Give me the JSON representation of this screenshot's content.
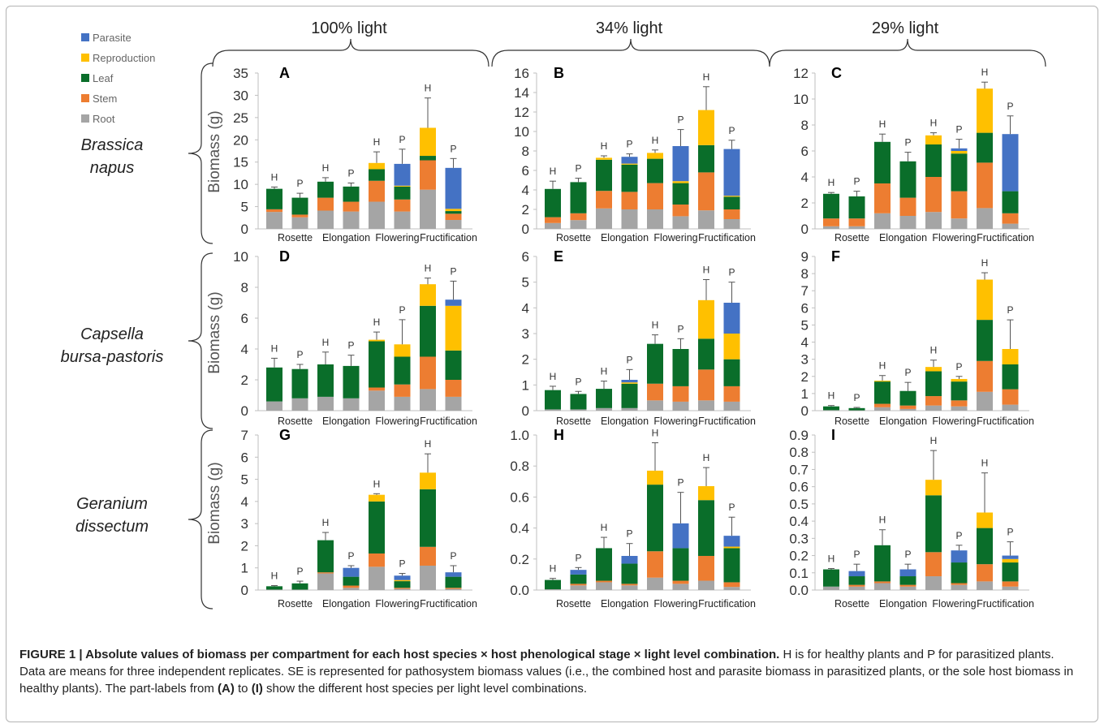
{
  "figure": {
    "column_titles": [
      "100% light",
      "34% light",
      "29% light"
    ],
    "row_labels": [
      [
        "Brassica",
        "napus"
      ],
      [
        "Capsella",
        "bursa-pastoris"
      ],
      [
        "Geranium",
        "dissectum"
      ]
    ],
    "legend": [
      {
        "name": "Parasite",
        "color": "#4472c4"
      },
      {
        "name": "Reproduction",
        "color": "#ffc000"
      },
      {
        "name": "Leaf",
        "color": "#0a6e2a"
      },
      {
        "name": "Stem",
        "color": "#ed7d31"
      },
      {
        "name": "Root",
        "color": "#a5a5a5"
      }
    ],
    "ylabel": "Biomass (g)",
    "categories": [
      "Rosette",
      "Elongation",
      "Flowering",
      "Fructification"
    ],
    "bar_labels": [
      "H",
      "P",
      "H",
      "P",
      "H",
      "P",
      "H",
      "P"
    ]
  },
  "chart_data": [
    {
      "type": "bar",
      "panel": "A",
      "ylim": [
        0,
        35
      ],
      "ticks": [
        "0",
        "5",
        "10",
        "15",
        "20",
        "25",
        "30",
        "35"
      ],
      "bars": [
        {
          "label": "H",
          "root": 3.8,
          "stem": 0.6,
          "leaf": 4.6,
          "repro": 0,
          "parasite": 0,
          "err": 0.4
        },
        {
          "label": "P",
          "root": 2.6,
          "stem": 0.6,
          "leaf": 3.8,
          "repro": 0,
          "parasite": 0,
          "err": 1.0
        },
        {
          "label": "H",
          "root": 4.1,
          "stem": 2.9,
          "leaf": 3.6,
          "repro": 0,
          "parasite": 0,
          "err": 0.9
        },
        {
          "label": "P",
          "root": 3.9,
          "stem": 2.2,
          "leaf": 3.4,
          "repro": 0,
          "parasite": 0,
          "err": 0.8
        },
        {
          "label": "H",
          "root": 6.1,
          "stem": 4.7,
          "leaf": 2.6,
          "repro": 1.4,
          "parasite": 0,
          "err": 2.5
        },
        {
          "label": "P",
          "root": 3.9,
          "stem": 2.7,
          "leaf": 2.9,
          "repro": 0.2,
          "parasite": 4.9,
          "err": 3.3
        },
        {
          "label": "H",
          "root": 8.8,
          "stem": 6.6,
          "leaf": 1.0,
          "repro": 6.3,
          "parasite": 0,
          "err": 6.7
        },
        {
          "label": "P",
          "root": 2.0,
          "stem": 1.4,
          "leaf": 0.6,
          "repro": 0.5,
          "parasite": 9.2,
          "err": 2.1
        }
      ]
    },
    {
      "type": "bar",
      "panel": "B",
      "ylim": [
        0,
        16
      ],
      "ticks": [
        "0",
        "2",
        "4",
        "6",
        "8",
        "10",
        "12",
        "14",
        "16"
      ],
      "bars": [
        {
          "label": "H",
          "root": 0.6,
          "stem": 0.6,
          "leaf": 2.9,
          "repro": 0,
          "parasite": 0,
          "err": 0.8
        },
        {
          "label": "P",
          "root": 0.9,
          "stem": 0.7,
          "leaf": 3.2,
          "repro": 0,
          "parasite": 0,
          "err": 0.4
        },
        {
          "label": "H",
          "root": 2.1,
          "stem": 1.8,
          "leaf": 3.2,
          "repro": 0.2,
          "parasite": 0,
          "err": 0.2
        },
        {
          "label": "P",
          "root": 2.0,
          "stem": 1.8,
          "leaf": 2.8,
          "repro": 0.1,
          "parasite": 0.7,
          "err": 0.3
        },
        {
          "label": "H",
          "root": 2.0,
          "stem": 2.7,
          "leaf": 2.5,
          "repro": 0.6,
          "parasite": 0,
          "err": 0.3
        },
        {
          "label": "P",
          "root": 1.3,
          "stem": 1.2,
          "leaf": 2.2,
          "repro": 0.2,
          "parasite": 3.6,
          "err": 1.7
        },
        {
          "label": "H",
          "root": 1.9,
          "stem": 3.9,
          "leaf": 2.8,
          "repro": 3.6,
          "parasite": 0,
          "err": 2.4
        },
        {
          "label": "P",
          "root": 1.0,
          "stem": 1.0,
          "leaf": 1.3,
          "repro": 0.1,
          "parasite": 4.8,
          "err": 0.9
        }
      ]
    },
    {
      "type": "bar",
      "panel": "C",
      "ylim": [
        0,
        12
      ],
      "ticks": [
        "0",
        "2",
        "4",
        "6",
        "8",
        "10",
        "12"
      ],
      "bars": [
        {
          "label": "H",
          "root": 0.2,
          "stem": 0.6,
          "leaf": 1.9,
          "repro": 0,
          "parasite": 0,
          "err": 0.1
        },
        {
          "label": "P",
          "root": 0.2,
          "stem": 0.6,
          "leaf": 1.7,
          "repro": 0,
          "parasite": 0,
          "err": 0.4
        },
        {
          "label": "H",
          "root": 1.2,
          "stem": 2.3,
          "leaf": 3.2,
          "repro": 0,
          "parasite": 0,
          "err": 0.6
        },
        {
          "label": "P",
          "root": 1.0,
          "stem": 1.4,
          "leaf": 2.8,
          "repro": 0,
          "parasite": 0,
          "err": 0.7
        },
        {
          "label": "H",
          "root": 1.3,
          "stem": 2.7,
          "leaf": 2.5,
          "repro": 0.7,
          "parasite": 0,
          "err": 0.2
        },
        {
          "label": "P",
          "root": 0.8,
          "stem": 2.1,
          "leaf": 2.9,
          "repro": 0.2,
          "parasite": 0.2,
          "err": 0.7
        },
        {
          "label": "H",
          "root": 1.6,
          "stem": 3.5,
          "leaf": 2.3,
          "repro": 3.4,
          "parasite": 0,
          "err": 0.5
        },
        {
          "label": "P",
          "root": 0.4,
          "stem": 0.8,
          "leaf": 1.7,
          "repro": 0,
          "parasite": 4.4,
          "err": 1.4
        }
      ]
    },
    {
      "type": "bar",
      "panel": "D",
      "ylim": [
        0,
        10
      ],
      "ticks": [
        "0",
        "2",
        "4",
        "6",
        "8",
        "10"
      ],
      "bars": [
        {
          "label": "H",
          "root": 0.6,
          "stem": 0,
          "leaf": 2.2,
          "repro": 0,
          "parasite": 0,
          "err": 0.6
        },
        {
          "label": "P",
          "root": 0.8,
          "stem": 0,
          "leaf": 1.9,
          "repro": 0,
          "parasite": 0,
          "err": 0.3
        },
        {
          "label": "H",
          "root": 0.9,
          "stem": 0,
          "leaf": 2.1,
          "repro": 0,
          "parasite": 0,
          "err": 0.8
        },
        {
          "label": "P",
          "root": 0.8,
          "stem": 0,
          "leaf": 2.1,
          "repro": 0,
          "parasite": 0,
          "err": 0.7
        },
        {
          "label": "H",
          "root": 1.3,
          "stem": 0.2,
          "leaf": 3.0,
          "repro": 0.1,
          "parasite": 0,
          "err": 0.5
        },
        {
          "label": "P",
          "root": 0.9,
          "stem": 0.8,
          "leaf": 1.8,
          "repro": 0.8,
          "parasite": 0,
          "err": 1.6
        },
        {
          "label": "H",
          "root": 1.4,
          "stem": 2.1,
          "leaf": 3.3,
          "repro": 1.4,
          "parasite": 0,
          "err": 0.4
        },
        {
          "label": "P",
          "root": 0.9,
          "stem": 1.1,
          "leaf": 1.9,
          "repro": 2.9,
          "parasite": 0.4,
          "err": 1.2
        }
      ]
    },
    {
      "type": "bar",
      "panel": "E",
      "ylim": [
        0,
        6
      ],
      "ticks": [
        "0",
        "1",
        "2",
        "3",
        "4",
        "5",
        "6"
      ],
      "bars": [
        {
          "label": "H",
          "root": 0.05,
          "stem": 0,
          "leaf": 0.75,
          "repro": 0,
          "parasite": 0,
          "err": 0.15
        },
        {
          "label": "P",
          "root": 0.05,
          "stem": 0,
          "leaf": 0.6,
          "repro": 0,
          "parasite": 0,
          "err": 0.1
        },
        {
          "label": "H",
          "root": 0.1,
          "stem": 0,
          "leaf": 0.75,
          "repro": 0,
          "parasite": 0,
          "err": 0.3
        },
        {
          "label": "P",
          "root": 0.1,
          "stem": 0,
          "leaf": 0.95,
          "repro": 0.05,
          "parasite": 0.1,
          "err": 0.4
        },
        {
          "label": "H",
          "root": 0.4,
          "stem": 0.65,
          "leaf": 1.55,
          "repro": 0,
          "parasite": 0,
          "err": 0.35
        },
        {
          "label": "P",
          "root": 0.35,
          "stem": 0.6,
          "leaf": 1.45,
          "repro": 0,
          "parasite": 0,
          "err": 0.4
        },
        {
          "label": "H",
          "root": 0.4,
          "stem": 1.2,
          "leaf": 1.2,
          "repro": 1.5,
          "parasite": 0,
          "err": 0.8
        },
        {
          "label": "P",
          "root": 0.35,
          "stem": 0.6,
          "leaf": 1.05,
          "repro": 1.0,
          "parasite": 1.2,
          "err": 0.8
        }
      ]
    },
    {
      "type": "bar",
      "panel": "F",
      "ylim": [
        0,
        9
      ],
      "ticks": [
        "0",
        "1",
        "2",
        "3",
        "4",
        "5",
        "6",
        "7",
        "8",
        "9"
      ],
      "bars": [
        {
          "label": "H",
          "root": 0.03,
          "stem": 0,
          "leaf": 0.22,
          "repro": 0,
          "parasite": 0,
          "err": 0.05
        },
        {
          "label": "P",
          "root": 0.02,
          "stem": 0,
          "leaf": 0.13,
          "repro": 0,
          "parasite": 0,
          "err": 0.04
        },
        {
          "label": "H",
          "root": 0.2,
          "stem": 0.2,
          "leaf": 1.3,
          "repro": 0.05,
          "parasite": 0,
          "err": 0.3
        },
        {
          "label": "P",
          "root": 0.1,
          "stem": 0.2,
          "leaf": 0.85,
          "repro": 0,
          "parasite": 0,
          "err": 0.5
        },
        {
          "label": "H",
          "root": 0.3,
          "stem": 0.55,
          "leaf": 1.45,
          "repro": 0.25,
          "parasite": 0,
          "err": 0.4
        },
        {
          "label": "P",
          "root": 0.25,
          "stem": 0.35,
          "leaf": 1.1,
          "repro": 0.15,
          "parasite": 0,
          "err": 0.15
        },
        {
          "label": "H",
          "root": 1.1,
          "stem": 1.8,
          "leaf": 2.4,
          "repro": 2.35,
          "parasite": 0,
          "err": 0.4
        },
        {
          "label": "P",
          "root": 0.35,
          "stem": 0.9,
          "leaf": 1.45,
          "repro": 0.9,
          "parasite": 0,
          "err": 1.7
        }
      ]
    },
    {
      "type": "bar",
      "panel": "G",
      "ylim": [
        0,
        7
      ],
      "ticks": [
        "0",
        "1",
        "2",
        "3",
        "4",
        "5",
        "6",
        "7"
      ],
      "bars": [
        {
          "label": "H",
          "root": 0.02,
          "stem": 0,
          "leaf": 0.15,
          "repro": 0,
          "parasite": 0,
          "err": 0.03
        },
        {
          "label": "P",
          "root": 0.02,
          "stem": 0,
          "leaf": 0.28,
          "repro": 0,
          "parasite": 0,
          "err": 0.1
        },
        {
          "label": "H",
          "root": 0.75,
          "stem": 0.05,
          "leaf": 1.45,
          "repro": 0,
          "parasite": 0,
          "err": 0.35
        },
        {
          "label": "P",
          "root": 0.1,
          "stem": 0.1,
          "leaf": 0.4,
          "repro": 0,
          "parasite": 0.4,
          "err": 0.1
        },
        {
          "label": "H",
          "root": 1.05,
          "stem": 0.6,
          "leaf": 2.35,
          "repro": 0.3,
          "parasite": 0,
          "err": 0.05
        },
        {
          "label": "P",
          "root": 0.05,
          "stem": 0.05,
          "leaf": 0.3,
          "repro": 0.05,
          "parasite": 0.2,
          "err": 0.1
        },
        {
          "label": "H",
          "root": 1.1,
          "stem": 0.85,
          "leaf": 2.6,
          "repro": 0.75,
          "parasite": 0,
          "err": 0.85
        },
        {
          "label": "P",
          "root": 0.05,
          "stem": 0.05,
          "leaf": 0.5,
          "repro": 0,
          "parasite": 0.2,
          "err": 0.3
        }
      ]
    },
    {
      "type": "bar",
      "panel": "H",
      "ylim": [
        0,
        1.0
      ],
      "ticks": [
        "0.0",
        "0.2",
        "0.4",
        "0.6",
        "0.8",
        "1.0"
      ],
      "bars": [
        {
          "label": "H",
          "root": 0.005,
          "stem": 0,
          "leaf": 0.06,
          "repro": 0,
          "parasite": 0,
          "err": 0.01
        },
        {
          "label": "P",
          "root": 0.03,
          "stem": 0.01,
          "leaf": 0.06,
          "repro": 0,
          "parasite": 0.03,
          "err": 0.015
        },
        {
          "label": "H",
          "root": 0.05,
          "stem": 0.01,
          "leaf": 0.21,
          "repro": 0,
          "parasite": 0,
          "err": 0.07
        },
        {
          "label": "P",
          "root": 0.03,
          "stem": 0.01,
          "leaf": 0.13,
          "repro": 0,
          "parasite": 0.05,
          "err": 0.08
        },
        {
          "label": "H",
          "root": 0.08,
          "stem": 0.17,
          "leaf": 0.43,
          "repro": 0.09,
          "parasite": 0,
          "err": 0.18
        },
        {
          "label": "P",
          "root": 0.04,
          "stem": 0.02,
          "leaf": 0.21,
          "repro": 0,
          "parasite": 0.16,
          "err": 0.2
        },
        {
          "label": "H",
          "root": 0.06,
          "stem": 0.16,
          "leaf": 0.36,
          "repro": 0.09,
          "parasite": 0,
          "err": 0.12
        },
        {
          "label": "P",
          "root": 0.02,
          "stem": 0.03,
          "leaf": 0.22,
          "repro": 0.01,
          "parasite": 0.07,
          "err": 0.12
        }
      ]
    },
    {
      "type": "bar",
      "panel": "I",
      "ylim": [
        0,
        0.9
      ],
      "ticks": [
        "0.0",
        "0.1",
        "0.2",
        "0.3",
        "0.4",
        "0.5",
        "0.6",
        "0.7",
        "0.8",
        "0.9"
      ],
      "bars": [
        {
          "label": "H",
          "root": 0.02,
          "stem": 0,
          "leaf": 0.1,
          "repro": 0,
          "parasite": 0,
          "err": 0.005
        },
        {
          "label": "P",
          "root": 0.02,
          "stem": 0.01,
          "leaf": 0.05,
          "repro": 0,
          "parasite": 0.03,
          "err": 0.04
        },
        {
          "label": "H",
          "root": 0.04,
          "stem": 0.01,
          "leaf": 0.21,
          "repro": 0,
          "parasite": 0,
          "err": 0.09
        },
        {
          "label": "P",
          "root": 0.02,
          "stem": 0.01,
          "leaf": 0.05,
          "repro": 0,
          "parasite": 0.04,
          "err": 0.03
        },
        {
          "label": "H",
          "root": 0.08,
          "stem": 0.14,
          "leaf": 0.33,
          "repro": 0.09,
          "parasite": 0,
          "err": 0.17
        },
        {
          "label": "P",
          "root": 0.03,
          "stem": 0.01,
          "leaf": 0.12,
          "repro": 0,
          "parasite": 0.07,
          "err": 0.03
        },
        {
          "label": "H",
          "root": 0.05,
          "stem": 0.1,
          "leaf": 0.21,
          "repro": 0.09,
          "parasite": 0,
          "err": 0.23
        },
        {
          "label": "P",
          "root": 0.02,
          "stem": 0.03,
          "leaf": 0.11,
          "repro": 0.02,
          "parasite": 0.02,
          "err": 0.08
        }
      ]
    }
  ],
  "caption": {
    "title": "FIGURE 1 | Absolute values of biomass per compartment for each host species × host phenological stage × light level combination.",
    "text_1": " H is for healthy plants and P for parasitized plants. Data are means for three independent replicates. SE is represented for pathosystem biomass values (i.e., the combined host and parasite biomass in parasitized plants, or the sole host biomass in healthy plants). The part-labels from ",
    "label_a": "(A)",
    "text_2": " to ",
    "label_i": "(I)",
    "text_3": " show the different host species per light level combinations."
  }
}
